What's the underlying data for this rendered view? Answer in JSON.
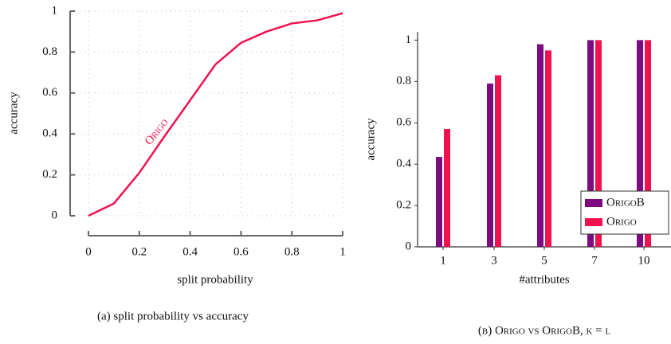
{
  "chart_data": [
    {
      "type": "line",
      "caption": "(a) split probability vs accuracy",
      "xlabel": "split probability",
      "ylabel": "accuracy",
      "x": [
        0,
        0.1,
        0.2,
        0.3,
        0.4,
        0.5,
        0.6,
        0.7,
        0.8,
        0.9,
        1
      ],
      "series": [
        {
          "name": "Origo",
          "color": "#f0124f",
          "values": [
            0,
            0.06,
            0.21,
            0.39,
            0.565,
            0.74,
            0.845,
            0.9,
            0.94,
            0.955,
            0.99
          ]
        }
      ],
      "xlim": [
        0,
        1
      ],
      "ylim": [
        0,
        1
      ],
      "xticks": [
        0,
        0.2,
        0.4,
        0.6,
        0.8,
        1
      ],
      "yticks": [
        0,
        0.2,
        0.4,
        0.6,
        0.8,
        1
      ],
      "grid": true
    },
    {
      "type": "bar",
      "caption": "(b) Origo vs OrigoB, k = l",
      "xlabel": "#attributes",
      "ylabel": "accuracy",
      "categories": [
        "1",
        "3",
        "5",
        "7",
        "10"
      ],
      "series": [
        {
          "name": "OrigoB",
          "color": "#7b0b7e",
          "values": [
            0.435,
            0.79,
            0.98,
            1,
            1
          ]
        },
        {
          "name": "Origo",
          "color": "#f0124f",
          "values": [
            0.57,
            0.83,
            0.95,
            1,
            1
          ]
        }
      ],
      "ylim": [
        0,
        1.04
      ],
      "yticks": [
        0,
        0.2,
        0.4,
        0.6,
        0.8,
        1
      ],
      "legend": "lower right"
    }
  ]
}
